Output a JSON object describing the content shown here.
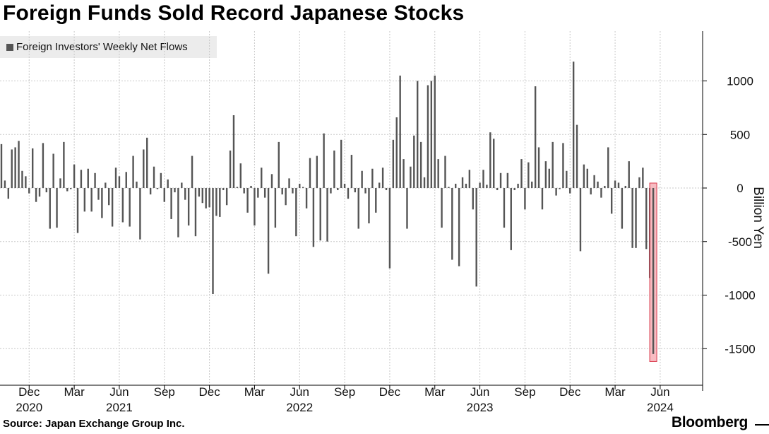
{
  "title": "Foreign Funds Sold Record Japanese Stocks",
  "legend_label": "Foreign Investors' Weekly Net Flows",
  "source": "Source: Japan Exchange Group Inc.",
  "brand": "Bloomberg",
  "colors": {
    "bar": "#555555",
    "grid": "#c8c8c8",
    "highlight_fill": "#f4a6ae",
    "highlight_stroke": "#d9364a",
    "legend_bg": "#ececec"
  },
  "chart_data": {
    "type": "bar",
    "title": "Foreign Funds Sold Record Japanese Stocks",
    "ylabel": "Billion Yen",
    "ylim": [
      -1780,
      1450
    ],
    "yticks": [
      1000,
      500,
      0,
      -500,
      -1000,
      -1500
    ],
    "ytick_labels": [
      "1000",
      "500",
      "0",
      "-500",
      "-1000",
      "-1500"
    ],
    "grid": true,
    "legend_position": "top-left",
    "x_ticks": [
      {
        "month": "Dec",
        "year": "2020",
        "week": 8
      },
      {
        "month": "Mar",
        "year": "",
        "week": 21
      },
      {
        "month": "Jun",
        "year": "2021",
        "week": 34
      },
      {
        "month": "Sep",
        "year": "",
        "week": 47
      },
      {
        "month": "Dec",
        "year": "",
        "week": 60
      },
      {
        "month": "Mar",
        "year": "",
        "week": 73
      },
      {
        "month": "Jun",
        "year": "2022",
        "week": 86
      },
      {
        "month": "Sep",
        "year": "",
        "week": 99
      },
      {
        "month": "Dec",
        "year": "",
        "week": 112
      },
      {
        "month": "Mar",
        "year": "",
        "week": 125
      },
      {
        "month": "Jun",
        "year": "2023",
        "week": 138
      },
      {
        "month": "Sep",
        "year": "",
        "week": 151
      },
      {
        "month": "Dec",
        "year": "",
        "week": 164
      },
      {
        "month": "Mar",
        "year": "",
        "week": 177
      },
      {
        "month": "Jun",
        "year": "2024",
        "week": 190
      }
    ],
    "series": [
      {
        "name": "Foreign Investors' Weekly Net Flows",
        "values": [
          410,
          70,
          -100,
          360,
          380,
          440,
          160,
          110,
          -50,
          370,
          -130,
          -80,
          420,
          -40,
          -380,
          320,
          -370,
          90,
          430,
          -30,
          -10,
          220,
          -420,
          170,
          -220,
          180,
          -220,
          140,
          -110,
          -280,
          50,
          -160,
          -360,
          190,
          110,
          -320,
          150,
          -360,
          300,
          60,
          -480,
          360,
          470,
          -60,
          200,
          -10,
          140,
          -130,
          80,
          -290,
          -40,
          -460,
          50,
          -110,
          -350,
          300,
          -450,
          -80,
          -140,
          -190,
          -180,
          -990,
          -260,
          -270,
          -20,
          -160,
          350,
          680,
          10,
          230,
          -50,
          -230,
          20,
          -350,
          -90,
          190,
          -90,
          -800,
          130,
          -370,
          430,
          -60,
          -160,
          90,
          -50,
          -450,
          40,
          10,
          -190,
          280,
          -550,
          300,
          -490,
          510,
          -500,
          -50,
          350,
          -20,
          450,
          40,
          -100,
          310,
          -40,
          -380,
          160,
          -50,
          -330,
          180,
          -230,
          50,
          190,
          -20,
          -750,
          450,
          660,
          1050,
          270,
          -380,
          200,
          490,
          1000,
          430,
          100,
          960,
          1000,
          1050,
          270,
          -370,
          300,
          10,
          -670,
          40,
          -730,
          100,
          40,
          170,
          -200,
          -920,
          50,
          170,
          30,
          520,
          460,
          -20,
          140,
          -370,
          140,
          -580,
          -20,
          40,
          270,
          -200,
          240,
          60,
          950,
          380,
          -200,
          250,
          180,
          430,
          -70,
          -10,
          420,
          160,
          -50,
          1180,
          590,
          -590,
          220,
          180,
          -60,
          120,
          60,
          -90,
          20,
          380,
          -240,
          70,
          50,
          -380,
          20,
          250,
          -560,
          -560,
          100,
          190,
          -570,
          -840,
          -1550
        ]
      }
    ],
    "highlight": {
      "from_value": 0,
      "to_value": -1620,
      "last_n_bars": 1
    }
  }
}
